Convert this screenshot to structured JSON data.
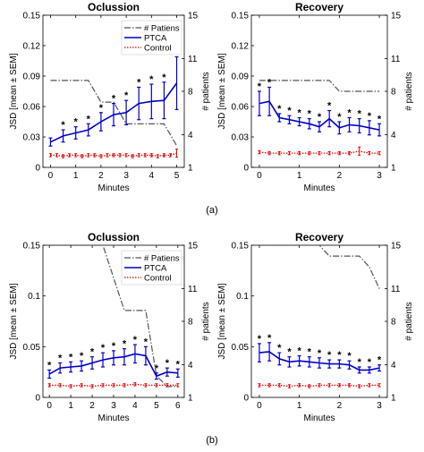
{
  "captions": {
    "a": "(a)",
    "b": "(b)"
  },
  "styles": {
    "ptca": "#0000c8",
    "control": "#e00000",
    "patients": "#555555",
    "star": "#000000"
  },
  "chart_data": [
    {
      "id": "a-occlusion",
      "type": "line",
      "title": "Oclussion",
      "xlabel": "Minutes",
      "ylabel": "JSD [mean ± SEM]",
      "y2label": "# patients",
      "xlim": [
        -0.3,
        5.3
      ],
      "ylim": [
        0,
        0.15
      ],
      "y2lim": [
        1,
        15
      ],
      "xticks": [
        "0",
        "1",
        "2",
        "3",
        "4",
        "5"
      ],
      "yticks": [
        "0",
        "0.03",
        "0.06",
        "0.09",
        "0.12",
        "0.15"
      ],
      "y2ticks": [
        "1",
        "4",
        "8",
        "11",
        "15"
      ],
      "legend": [
        "# Patiens",
        "PTCA",
        "Control"
      ],
      "ptca": {
        "x": [
          0,
          0.5,
          1,
          1.5,
          2,
          2.5,
          3,
          3.5,
          4,
          4.5,
          5
        ],
        "y": [
          0.025,
          0.031,
          0.034,
          0.037,
          0.045,
          0.052,
          0.054,
          0.063,
          0.065,
          0.066,
          0.083
        ],
        "err": [
          0.004,
          0.006,
          0.006,
          0.006,
          0.009,
          0.011,
          0.012,
          0.016,
          0.017,
          0.018,
          0.026
        ]
      },
      "control": {
        "x": [
          0,
          0.25,
          0.5,
          0.75,
          1,
          1.25,
          1.5,
          1.75,
          2,
          2.25,
          2.5,
          2.75,
          3,
          3.25,
          3.5,
          3.75,
          4,
          4.25,
          4.5,
          4.75,
          5
        ],
        "y": [
          0.012,
          0.012,
          0.011,
          0.012,
          0.012,
          0.011,
          0.012,
          0.012,
          0.011,
          0.012,
          0.012,
          0.012,
          0.012,
          0.011,
          0.012,
          0.012,
          0.012,
          0.011,
          0.012,
          0.012,
          0.014
        ],
        "err": [
          0.0015,
          0.0015,
          0.0015,
          0.0015,
          0.0015,
          0.0015,
          0.0015,
          0.0015,
          0.0015,
          0.0015,
          0.0015,
          0.0015,
          0.0015,
          0.0015,
          0.0015,
          0.0015,
          0.0015,
          0.0015,
          0.0015,
          0.0015,
          0.004
        ]
      },
      "patients": {
        "x": [
          0,
          0.5,
          1,
          1.5,
          2,
          2.5,
          3,
          3.5,
          4,
          4.5,
          5
        ],
        "y": [
          9,
          9,
          9,
          9,
          7,
          7,
          5,
          5,
          5,
          5,
          3
        ]
      },
      "stars": [
        0.5,
        1,
        1.5,
        2,
        2.5,
        3,
        3.5,
        4,
        4.5,
        5
      ]
    },
    {
      "id": "a-recovery",
      "type": "line",
      "title": "Recovery",
      "xlabel": "Minutes",
      "ylabel": "JSD [mean ± SEM]",
      "y2label": "# patients",
      "xlim": [
        -0.2,
        3.2
      ],
      "ylim": [
        0,
        0.15
      ],
      "y2lim": [
        1,
        15
      ],
      "xticks": [
        "0",
        "1",
        "2",
        "3"
      ],
      "yticks": [
        "0",
        "0.03",
        "0.06",
        "0.09",
        "0.12",
        "0.15"
      ],
      "y2ticks": [
        "1",
        "4",
        "8",
        "11",
        "15"
      ],
      "legend": [],
      "ptca": {
        "x": [
          0,
          0.25,
          0.5,
          0.75,
          1,
          1.25,
          1.5,
          1.75,
          2,
          2.25,
          2.5,
          2.75,
          3
        ],
        "y": [
          0.063,
          0.065,
          0.049,
          0.047,
          0.045,
          0.043,
          0.04,
          0.048,
          0.039,
          0.042,
          0.041,
          0.039,
          0.037
        ],
        "err": [
          0.012,
          0.014,
          0.004,
          0.004,
          0.004,
          0.005,
          0.005,
          0.008,
          0.006,
          0.007,
          0.007,
          0.007,
          0.006
        ]
      },
      "control": {
        "x": [
          0,
          0.25,
          0.5,
          0.75,
          1,
          1.25,
          1.5,
          1.75,
          2,
          2.25,
          2.5,
          2.75,
          3
        ],
        "y": [
          0.015,
          0.014,
          0.014,
          0.014,
          0.014,
          0.014,
          0.014,
          0.014,
          0.014,
          0.014,
          0.016,
          0.014,
          0.014
        ],
        "err": [
          0.0015,
          0.0015,
          0.0015,
          0.0015,
          0.0015,
          0.0015,
          0.0015,
          0.0015,
          0.0015,
          0.0015,
          0.004,
          0.0015,
          0.0015
        ]
      },
      "patients": {
        "x": [
          0,
          0.25,
          0.5,
          0.75,
          1,
          1.25,
          1.5,
          1.75,
          2,
          2.25,
          2.5,
          2.75,
          3
        ],
        "y": [
          9,
          9,
          9,
          9,
          9,
          9,
          9,
          9,
          8,
          8,
          8,
          8,
          8
        ]
      },
      "stars": [
        0,
        0.25,
        0.5,
        0.75,
        1,
        1.25,
        1.5,
        1.75,
        2,
        2.25,
        2.5,
        2.75,
        3
      ]
    },
    {
      "id": "b-occlusion",
      "type": "line",
      "title": "Oclussion",
      "xlabel": "Minutes",
      "ylabel": "JSD [mean ± SEM]",
      "y2label": "# patients",
      "xlim": [
        -0.3,
        6.3
      ],
      "ylim": [
        0,
        0.15
      ],
      "y2lim": [
        1,
        15
      ],
      "xticks": [
        "0",
        "1",
        "2",
        "3",
        "4",
        "5",
        "6"
      ],
      "yticks": [
        "0",
        "0.05",
        "0.1",
        "0.15"
      ],
      "y2ticks": [
        "1",
        "4",
        "8",
        "11",
        "15"
      ],
      "legend": [
        "# Patiens",
        "PTCA",
        "Control"
      ],
      "ptca": {
        "x": [
          0,
          0.5,
          1,
          1.5,
          2,
          2.5,
          3,
          3.5,
          4,
          4.5,
          5,
          5.5,
          6
        ],
        "y": [
          0.023,
          0.029,
          0.03,
          0.031,
          0.034,
          0.037,
          0.039,
          0.04,
          0.043,
          0.041,
          0.021,
          0.025,
          0.024
        ],
        "err": [
          0.004,
          0.005,
          0.005,
          0.005,
          0.006,
          0.007,
          0.007,
          0.008,
          0.009,
          0.009,
          0.003,
          0.004,
          0.004
        ]
      },
      "control": {
        "x": [
          0,
          0.5,
          1,
          1.5,
          2,
          2.5,
          3,
          3.5,
          4,
          4.5,
          5,
          5.5,
          6
        ],
        "y": [
          0.012,
          0.012,
          0.011,
          0.012,
          0.011,
          0.012,
          0.012,
          0.012,
          0.013,
          0.012,
          0.012,
          0.012,
          0.012
        ],
        "err": [
          0.0015,
          0.0015,
          0.0015,
          0.0015,
          0.0015,
          0.0015,
          0.0015,
          0.0015,
          0.0015,
          0.0015,
          0.0015,
          0.0015,
          0.0015
        ]
      },
      "patients": {
        "x": [
          0,
          1,
          2,
          2.5,
          3,
          3.5,
          4,
          4.5,
          5,
          5.5,
          6
        ],
        "y": [
          15,
          15,
          15,
          15,
          12,
          9,
          9,
          9,
          3,
          2,
          2
        ]
      },
      "stars": [
        0,
        0.5,
        1,
        1.5,
        2,
        2.5,
        3,
        3.5,
        4,
        4.5,
        5,
        5.5,
        6
      ]
    },
    {
      "id": "b-recovery",
      "type": "line",
      "title": "Recovery",
      "xlabel": "Minutes",
      "ylabel": "JSD [mean ± SEM]",
      "y2label": "# patients",
      "xlim": [
        -0.2,
        3.2
      ],
      "ylim": [
        0,
        0.15
      ],
      "y2lim": [
        1,
        15
      ],
      "xticks": [
        "0",
        "1",
        "2",
        "3"
      ],
      "yticks": [
        "0",
        "0.05",
        "0.1",
        "0.15"
      ],
      "y2ticks": [
        "1",
        "4",
        "8",
        "11",
        "15"
      ],
      "legend": [],
      "ptca": {
        "x": [
          0,
          0.25,
          0.5,
          0.75,
          1,
          1.25,
          1.5,
          1.75,
          2,
          2.25,
          2.5,
          2.75,
          3
        ],
        "y": [
          0.044,
          0.045,
          0.038,
          0.035,
          0.036,
          0.035,
          0.034,
          0.033,
          0.033,
          0.032,
          0.027,
          0.027,
          0.029
        ],
        "err": [
          0.009,
          0.009,
          0.006,
          0.005,
          0.005,
          0.005,
          0.005,
          0.004,
          0.004,
          0.004,
          0.003,
          0.003,
          0.003
        ]
      },
      "control": {
        "x": [
          0,
          0.25,
          0.5,
          0.75,
          1,
          1.25,
          1.5,
          1.75,
          2,
          2.25,
          2.5,
          2.75,
          3
        ],
        "y": [
          0.012,
          0.012,
          0.012,
          0.011,
          0.012,
          0.011,
          0.012,
          0.012,
          0.012,
          0.012,
          0.011,
          0.012,
          0.012
        ],
        "err": [
          0.0015,
          0.0015,
          0.0015,
          0.0015,
          0.0015,
          0.0015,
          0.0015,
          0.0015,
          0.0015,
          0.0015,
          0.0015,
          0.0015,
          0.0015
        ]
      },
      "patients": {
        "x": [
          0,
          0.5,
          1,
          1.5,
          1.75,
          2,
          2.5,
          2.75,
          3
        ],
        "y": [
          15,
          15,
          15,
          15,
          14,
          14,
          14,
          13,
          11
        ]
      },
      "stars": [
        0,
        0.25,
        0.5,
        0.75,
        1,
        1.25,
        1.5,
        1.75,
        2,
        2.25,
        2.5,
        2.75,
        3
      ]
    }
  ]
}
